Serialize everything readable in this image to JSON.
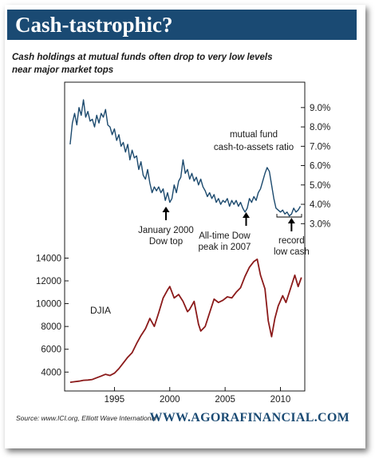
{
  "header": {
    "title": "Cash-tastrophic?",
    "subtitle_lines": [
      "Cash holdings at mutual funds often drop to very low levels",
      "near major market tops"
    ]
  },
  "footer": {
    "source": "Source: www.ICI.org, Elliott Wave International",
    "brand": "WWW.AGORAFINANCIAL.COM"
  },
  "colors": {
    "banner": "#1a4a73",
    "cash_line": "#1c4a6e",
    "djia_line": "#8b1a1a"
  },
  "chart_data": {
    "type": "line",
    "x_range": [
      1990.5,
      2012.2
    ],
    "x_ticks": [
      {
        "value": 1995,
        "label": "1995"
      },
      {
        "value": 2000,
        "label": "2000"
      },
      {
        "value": 2005,
        "label": "2005"
      },
      {
        "value": 2010,
        "label": "2010"
      }
    ],
    "cash_ratio": {
      "name": "mutual fund cash-to-assets ratio",
      "axis": "right",
      "y_range": [
        2.6,
        9.9
      ],
      "ticks": [
        {
          "value": 9.0,
          "label": "9.0%"
        },
        {
          "value": 8.0,
          "label": "8.0%"
        },
        {
          "value": 7.0,
          "label": "7.0%"
        },
        {
          "value": 6.0,
          "label": "6.0%"
        },
        {
          "value": 5.0,
          "label": "5.0%"
        },
        {
          "value": 4.0,
          "label": "4.0%"
        },
        {
          "value": 3.0,
          "label": "3.0%"
        }
      ],
      "points": [
        [
          1991.0,
          7.1
        ],
        [
          1991.2,
          8.2
        ],
        [
          1991.4,
          8.7
        ],
        [
          1991.6,
          8.1
        ],
        [
          1991.8,
          9.0
        ],
        [
          1992.0,
          8.6
        ],
        [
          1992.2,
          9.4
        ],
        [
          1992.4,
          8.5
        ],
        [
          1992.6,
          8.8
        ],
        [
          1992.8,
          8.3
        ],
        [
          1993.0,
          8.4
        ],
        [
          1993.2,
          8.0
        ],
        [
          1993.4,
          8.6
        ],
        [
          1993.6,
          8.2
        ],
        [
          1993.8,
          8.7
        ],
        [
          1994.0,
          8.5
        ],
        [
          1994.2,
          8.9
        ],
        [
          1994.4,
          8.1
        ],
        [
          1994.6,
          8.0
        ],
        [
          1994.8,
          7.6
        ],
        [
          1995.0,
          7.9
        ],
        [
          1995.2,
          7.3
        ],
        [
          1995.4,
          7.6
        ],
        [
          1995.6,
          7.0
        ],
        [
          1995.8,
          7.2
        ],
        [
          1996.0,
          6.7
        ],
        [
          1996.2,
          7.1
        ],
        [
          1996.4,
          6.3
        ],
        [
          1996.6,
          6.8
        ],
        [
          1996.8,
          6.4
        ],
        [
          1997.0,
          6.5
        ],
        [
          1997.2,
          5.8
        ],
        [
          1997.4,
          6.2
        ],
        [
          1997.6,
          5.5
        ],
        [
          1997.8,
          5.3
        ],
        [
          1998.0,
          5.8
        ],
        [
          1998.2,
          5.1
        ],
        [
          1998.4,
          4.6
        ],
        [
          1998.6,
          4.9
        ],
        [
          1998.8,
          4.7
        ],
        [
          1999.0,
          4.9
        ],
        [
          1999.2,
          4.6
        ],
        [
          1999.4,
          4.8
        ],
        [
          1999.6,
          4.2
        ],
        [
          1999.8,
          4.6
        ],
        [
          2000.0,
          4.1
        ],
        [
          2000.2,
          4.3
        ],
        [
          2000.4,
          5.0
        ],
        [
          2000.6,
          4.6
        ],
        [
          2000.8,
          5.2
        ],
        [
          2001.0,
          5.4
        ],
        [
          2001.2,
          6.3
        ],
        [
          2001.4,
          5.6
        ],
        [
          2001.6,
          5.8
        ],
        [
          2001.8,
          5.3
        ],
        [
          2002.0,
          5.6
        ],
        [
          2002.2,
          5.2
        ],
        [
          2002.4,
          5.4
        ],
        [
          2002.6,
          5.0
        ],
        [
          2002.8,
          5.3
        ],
        [
          2003.0,
          4.9
        ],
        [
          2003.2,
          4.7
        ],
        [
          2003.4,
          4.4
        ],
        [
          2003.6,
          4.6
        ],
        [
          2003.8,
          4.3
        ],
        [
          2004.0,
          4.5
        ],
        [
          2004.2,
          4.1
        ],
        [
          2004.4,
          4.3
        ],
        [
          2004.6,
          4.0
        ],
        [
          2004.8,
          4.2
        ],
        [
          2005.0,
          4.1
        ],
        [
          2005.2,
          4.3
        ],
        [
          2005.4,
          3.9
        ],
        [
          2005.6,
          4.2
        ],
        [
          2005.8,
          4.0
        ],
        [
          2006.0,
          4.2
        ],
        [
          2006.2,
          3.9
        ],
        [
          2006.4,
          4.1
        ],
        [
          2006.6,
          3.8
        ],
        [
          2006.8,
          3.6
        ],
        [
          2007.0,
          3.8
        ],
        [
          2007.2,
          4.3
        ],
        [
          2007.4,
          4.1
        ],
        [
          2007.6,
          4.4
        ],
        [
          2007.8,
          4.2
        ],
        [
          2008.0,
          4.6
        ],
        [
          2008.2,
          4.8
        ],
        [
          2008.4,
          5.2
        ],
        [
          2008.6,
          5.6
        ],
        [
          2008.8,
          5.9
        ],
        [
          2009.0,
          5.7
        ],
        [
          2009.2,
          5.0
        ],
        [
          2009.4,
          4.3
        ],
        [
          2009.6,
          3.8
        ],
        [
          2009.8,
          3.7
        ],
        [
          2010.0,
          3.6
        ],
        [
          2010.2,
          3.7
        ],
        [
          2010.4,
          3.5
        ],
        [
          2010.6,
          3.6
        ],
        [
          2010.8,
          3.4
        ],
        [
          2011.0,
          3.5
        ],
        [
          2011.2,
          3.8
        ],
        [
          2011.4,
          3.6
        ],
        [
          2011.6,
          3.7
        ],
        [
          2011.8,
          3.9
        ]
      ]
    },
    "djia": {
      "name": "DJIA",
      "axis": "left",
      "y_range": [
        2900,
        14100
      ],
      "ticks": [
        {
          "value": 14000,
          "label": "14000"
        },
        {
          "value": 12000,
          "label": "12000"
        },
        {
          "value": 10000,
          "label": "10000"
        },
        {
          "value": 8000,
          "label": "8000"
        },
        {
          "value": 6000,
          "label": "6000"
        },
        {
          "value": 4000,
          "label": "4000"
        }
      ],
      "points": [
        [
          1991.0,
          3100
        ],
        [
          1991.4,
          3150
        ],
        [
          1991.8,
          3200
        ],
        [
          1992.2,
          3280
        ],
        [
          1992.6,
          3300
        ],
        [
          1993.0,
          3350
        ],
        [
          1993.4,
          3500
        ],
        [
          1993.8,
          3650
        ],
        [
          1994.2,
          3800
        ],
        [
          1994.6,
          3700
        ],
        [
          1995.0,
          3900
        ],
        [
          1995.4,
          4300
        ],
        [
          1995.8,
          4800
        ],
        [
          1996.2,
          5300
        ],
        [
          1996.6,
          5700
        ],
        [
          1997.0,
          6500
        ],
        [
          1997.4,
          7200
        ],
        [
          1997.8,
          7800
        ],
        [
          1998.2,
          8700
        ],
        [
          1998.6,
          8000
        ],
        [
          1999.0,
          9200
        ],
        [
          1999.4,
          10500
        ],
        [
          1999.8,
          11200
        ],
        [
          2000.0,
          11500
        ],
        [
          2000.4,
          10500
        ],
        [
          2000.8,
          10800
        ],
        [
          2001.2,
          10200
        ],
        [
          2001.6,
          9300
        ],
        [
          2001.8,
          9500
        ],
        [
          2002.2,
          10200
        ],
        [
          2002.6,
          8200
        ],
        [
          2002.8,
          7600
        ],
        [
          2003.2,
          8000
        ],
        [
          2003.6,
          9200
        ],
        [
          2004.0,
          10400
        ],
        [
          2004.4,
          10100
        ],
        [
          2004.8,
          10300
        ],
        [
          2005.2,
          10600
        ],
        [
          2005.6,
          10500
        ],
        [
          2006.0,
          11000
        ],
        [
          2006.4,
          11400
        ],
        [
          2006.8,
          12400
        ],
        [
          2007.2,
          13200
        ],
        [
          2007.6,
          13700
        ],
        [
          2007.9,
          13900
        ],
        [
          2008.2,
          12500
        ],
        [
          2008.6,
          11300
        ],
        [
          2008.9,
          8500
        ],
        [
          2009.2,
          7100
        ],
        [
          2009.5,
          8700
        ],
        [
          2009.8,
          9800
        ],
        [
          2010.2,
          10700
        ],
        [
          2010.5,
          10100
        ],
        [
          2010.9,
          11300
        ],
        [
          2011.3,
          12500
        ],
        [
          2011.6,
          11500
        ],
        [
          2011.9,
          12300
        ]
      ]
    },
    "annotations": [
      {
        "id": "jan2000",
        "lines": [
          "January 2000",
          "Dow top"
        ],
        "x": 1999.8
      },
      {
        "id": "dow2007",
        "lines": [
          "All-time Dow",
          "peak in 2007"
        ],
        "x": 2006.9
      },
      {
        "id": "recordlow",
        "lines": [
          "record",
          "low cash"
        ],
        "x": 2011.0
      }
    ],
    "series_labels": {
      "cash": [
        "mutual fund",
        "cash-to-assets ratio"
      ],
      "djia": "DJIA"
    }
  }
}
